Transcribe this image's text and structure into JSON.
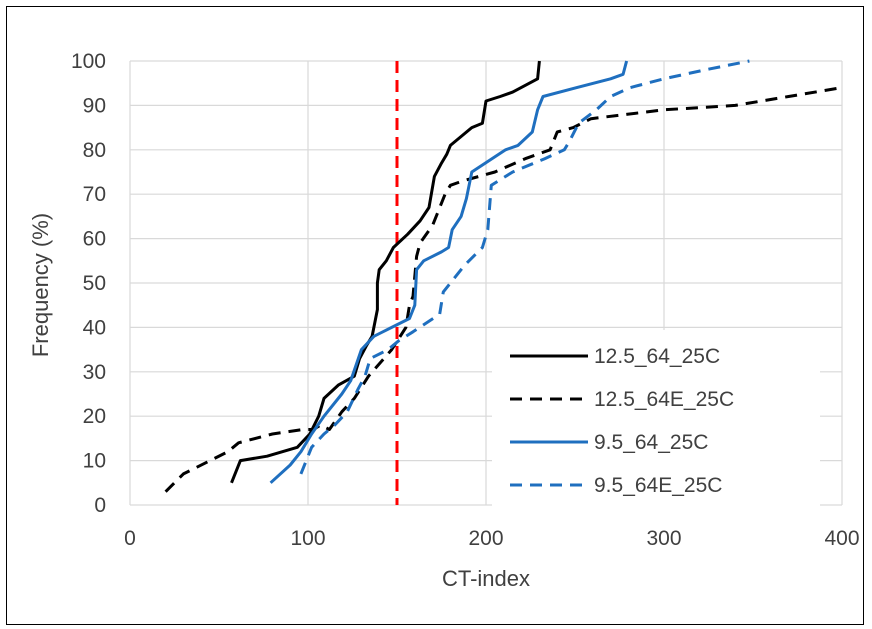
{
  "chart_data": {
    "type": "line",
    "xlabel": "CT-index",
    "ylabel": "Frequency (%)",
    "xlim": [
      0,
      400
    ],
    "ylim": [
      0,
      100
    ],
    "x_ticks": [
      "0",
      "100",
      "200",
      "300",
      "400"
    ],
    "y_ticks": [
      "0",
      "10",
      "20",
      "30",
      "40",
      "50",
      "60",
      "70",
      "80",
      "90",
      "100"
    ],
    "grid": true,
    "legend_position": "bottom-right",
    "threshold_line": {
      "x": 150,
      "color": "#ff0000",
      "style": "dashed"
    },
    "series": [
      {
        "name": "12.5_64_25C",
        "color": "#000000",
        "dash": "solid",
        "points": [
          [
            57,
            5
          ],
          [
            62,
            10
          ],
          [
            77,
            11
          ],
          [
            94,
            13
          ],
          [
            101,
            16
          ],
          [
            106,
            20
          ],
          [
            109,
            24
          ],
          [
            117,
            27
          ],
          [
            126,
            29
          ],
          [
            129,
            33
          ],
          [
            133,
            36
          ],
          [
            136,
            38
          ],
          [
            139,
            44
          ],
          [
            139,
            50
          ],
          [
            140,
            53
          ],
          [
            144,
            55
          ],
          [
            148,
            58
          ],
          [
            156,
            61
          ],
          [
            163,
            64
          ],
          [
            168,
            67
          ],
          [
            171,
            74
          ],
          [
            175,
            77
          ],
          [
            178,
            79
          ],
          [
            180,
            81
          ],
          [
            186,
            83
          ],
          [
            192,
            85
          ],
          [
            198,
            86
          ],
          [
            200,
            91
          ],
          [
            208,
            92
          ],
          [
            215,
            93
          ],
          [
            229,
            96
          ],
          [
            230,
            100
          ]
        ]
      },
      {
        "name": "12.5_64E_25C",
        "color": "#000000",
        "dash": "dashed",
        "points": [
          [
            20,
            3
          ],
          [
            30,
            7
          ],
          [
            45,
            10
          ],
          [
            55,
            12
          ],
          [
            61,
            14
          ],
          [
            80,
            16
          ],
          [
            97,
            17
          ],
          [
            103,
            17
          ],
          [
            107,
            18
          ],
          [
            112,
            17
          ],
          [
            119,
            21
          ],
          [
            126,
            24
          ],
          [
            134,
            29
          ],
          [
            147,
            35
          ],
          [
            155,
            40
          ],
          [
            157,
            45
          ],
          [
            159,
            47
          ],
          [
            161,
            56
          ],
          [
            163,
            59
          ],
          [
            170,
            63
          ],
          [
            177,
            70
          ],
          [
            180,
            72
          ],
          [
            187,
            73
          ],
          [
            205,
            75
          ],
          [
            222,
            78
          ],
          [
            236,
            80
          ],
          [
            240,
            84
          ],
          [
            249,
            85
          ],
          [
            259,
            87
          ],
          [
            300,
            89
          ],
          [
            340,
            90
          ],
          [
            370,
            92
          ],
          [
            400,
            94
          ]
        ]
      },
      {
        "name": "9.5_64_25C",
        "color": "#1f6fbf",
        "dash": "solid",
        "points": [
          [
            79,
            5
          ],
          [
            90,
            9
          ],
          [
            96,
            12
          ],
          [
            102,
            16
          ],
          [
            109,
            20
          ],
          [
            119,
            25
          ],
          [
            124,
            28
          ],
          [
            130,
            35
          ],
          [
            137,
            38
          ],
          [
            147,
            40
          ],
          [
            157,
            42
          ],
          [
            160,
            45
          ],
          [
            161,
            53
          ],
          [
            165,
            55
          ],
          [
            175,
            57
          ],
          [
            179,
            58
          ],
          [
            181,
            62
          ],
          [
            186,
            65
          ],
          [
            189,
            69
          ],
          [
            192,
            75
          ],
          [
            211,
            80
          ],
          [
            218,
            81
          ],
          [
            226,
            84
          ],
          [
            229,
            89
          ],
          [
            232,
            92
          ],
          [
            251,
            94
          ],
          [
            270,
            96
          ],
          [
            277,
            97
          ],
          [
            279,
            100
          ]
        ]
      },
      {
        "name": "9.5_64E_25C",
        "color": "#1f6fbf",
        "dash": "dashed",
        "points": [
          [
            96,
            7
          ],
          [
            102,
            13
          ],
          [
            109,
            16
          ],
          [
            115,
            18
          ],
          [
            122,
            21
          ],
          [
            128,
            26
          ],
          [
            132,
            29
          ],
          [
            135,
            33
          ],
          [
            145,
            35
          ],
          [
            151,
            37
          ],
          [
            159,
            39
          ],
          [
            174,
            43
          ],
          [
            176,
            48
          ],
          [
            188,
            54
          ],
          [
            198,
            58
          ],
          [
            201,
            62
          ],
          [
            203,
            72
          ],
          [
            215,
            75
          ],
          [
            233,
            78
          ],
          [
            244,
            80
          ],
          [
            247,
            82
          ],
          [
            252,
            86
          ],
          [
            262,
            89
          ],
          [
            270,
            92
          ],
          [
            281,
            94
          ],
          [
            300,
            96
          ],
          [
            323,
            98
          ],
          [
            348,
            100
          ]
        ]
      }
    ]
  }
}
